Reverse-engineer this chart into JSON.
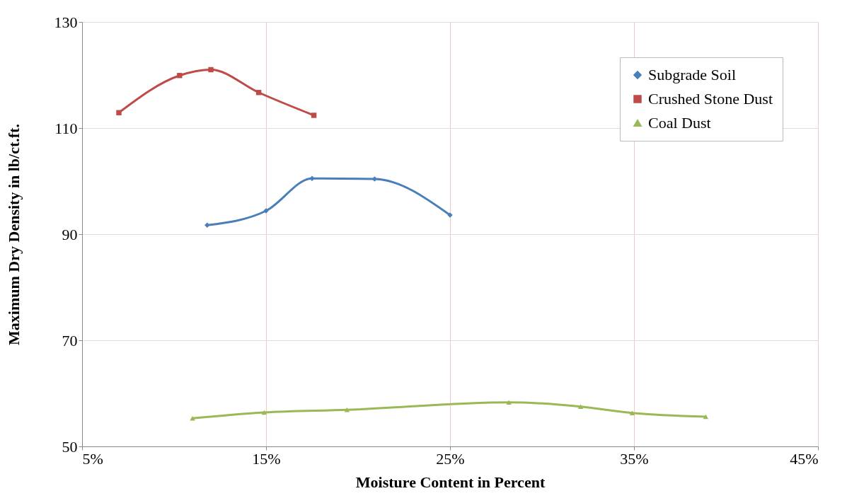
{
  "chart_data": {
    "type": "line",
    "xlabel": "Moisture Content in Percent",
    "ylabel": "Maximum Dry Density in lb/ct.ft.",
    "xlim": [
      5,
      45
    ],
    "xticks": [
      {
        "value": 5,
        "label": "5%"
      },
      {
        "value": 15,
        "label": "15%"
      },
      {
        "value": 25,
        "label": "25%"
      },
      {
        "value": 35,
        "label": "35%"
      },
      {
        "value": 45,
        "label": "45%"
      }
    ],
    "ylim": [
      50,
      130
    ],
    "yticks": [
      50,
      70,
      90,
      110,
      130
    ],
    "grid": true,
    "legend": "top right",
    "line_style": "solid",
    "series": [
      {
        "name": "Subgrade Soil",
        "color": "#4a7ebb",
        "marker": "diamond",
        "x": [
          11.8,
          15.0,
          17.5,
          20.9,
          25.0
        ],
        "values": [
          91.7,
          94.4,
          100.5,
          100.4,
          93.6
        ]
      },
      {
        "name": "Crushed Stone Dust",
        "color": "#be4b48",
        "marker": "square",
        "x": [
          7.0,
          10.3,
          12.0,
          14.6,
          17.6
        ],
        "values": [
          112.9,
          119.9,
          121.0,
          116.7,
          112.4
        ]
      },
      {
        "name": "Coal Dust",
        "color": "#98b954",
        "marker": "triangle",
        "x": [
          11.0,
          14.9,
          19.4,
          28.2,
          32.1,
          34.9,
          38.9
        ],
        "values": [
          55.3,
          56.4,
          56.9,
          58.3,
          57.5,
          56.3,
          55.6
        ]
      }
    ]
  }
}
